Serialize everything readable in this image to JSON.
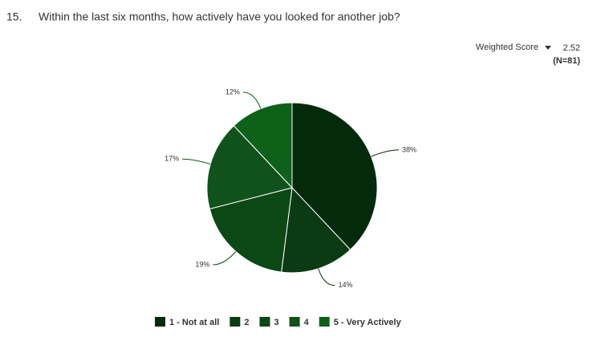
{
  "chart_data": {
    "type": "pie",
    "question_number": "15.",
    "title": "Within the last six months, how actively have you looked for another job?",
    "score_label": "Weighted Score",
    "score": 2.52,
    "n_label": "(N=81)",
    "categories": [
      "1 - Not at all",
      "2",
      "3",
      "4",
      "5 - Very Actively"
    ],
    "values": [
      38,
      14,
      19,
      17,
      12
    ],
    "value_labels": [
      "38%",
      "14%",
      "19%",
      "17%",
      "12%"
    ],
    "colors": [
      "#042a0c",
      "#0a3b12",
      "#0c4716",
      "#0f531b",
      "#0e6119"
    ],
    "legend": "bottom"
  }
}
